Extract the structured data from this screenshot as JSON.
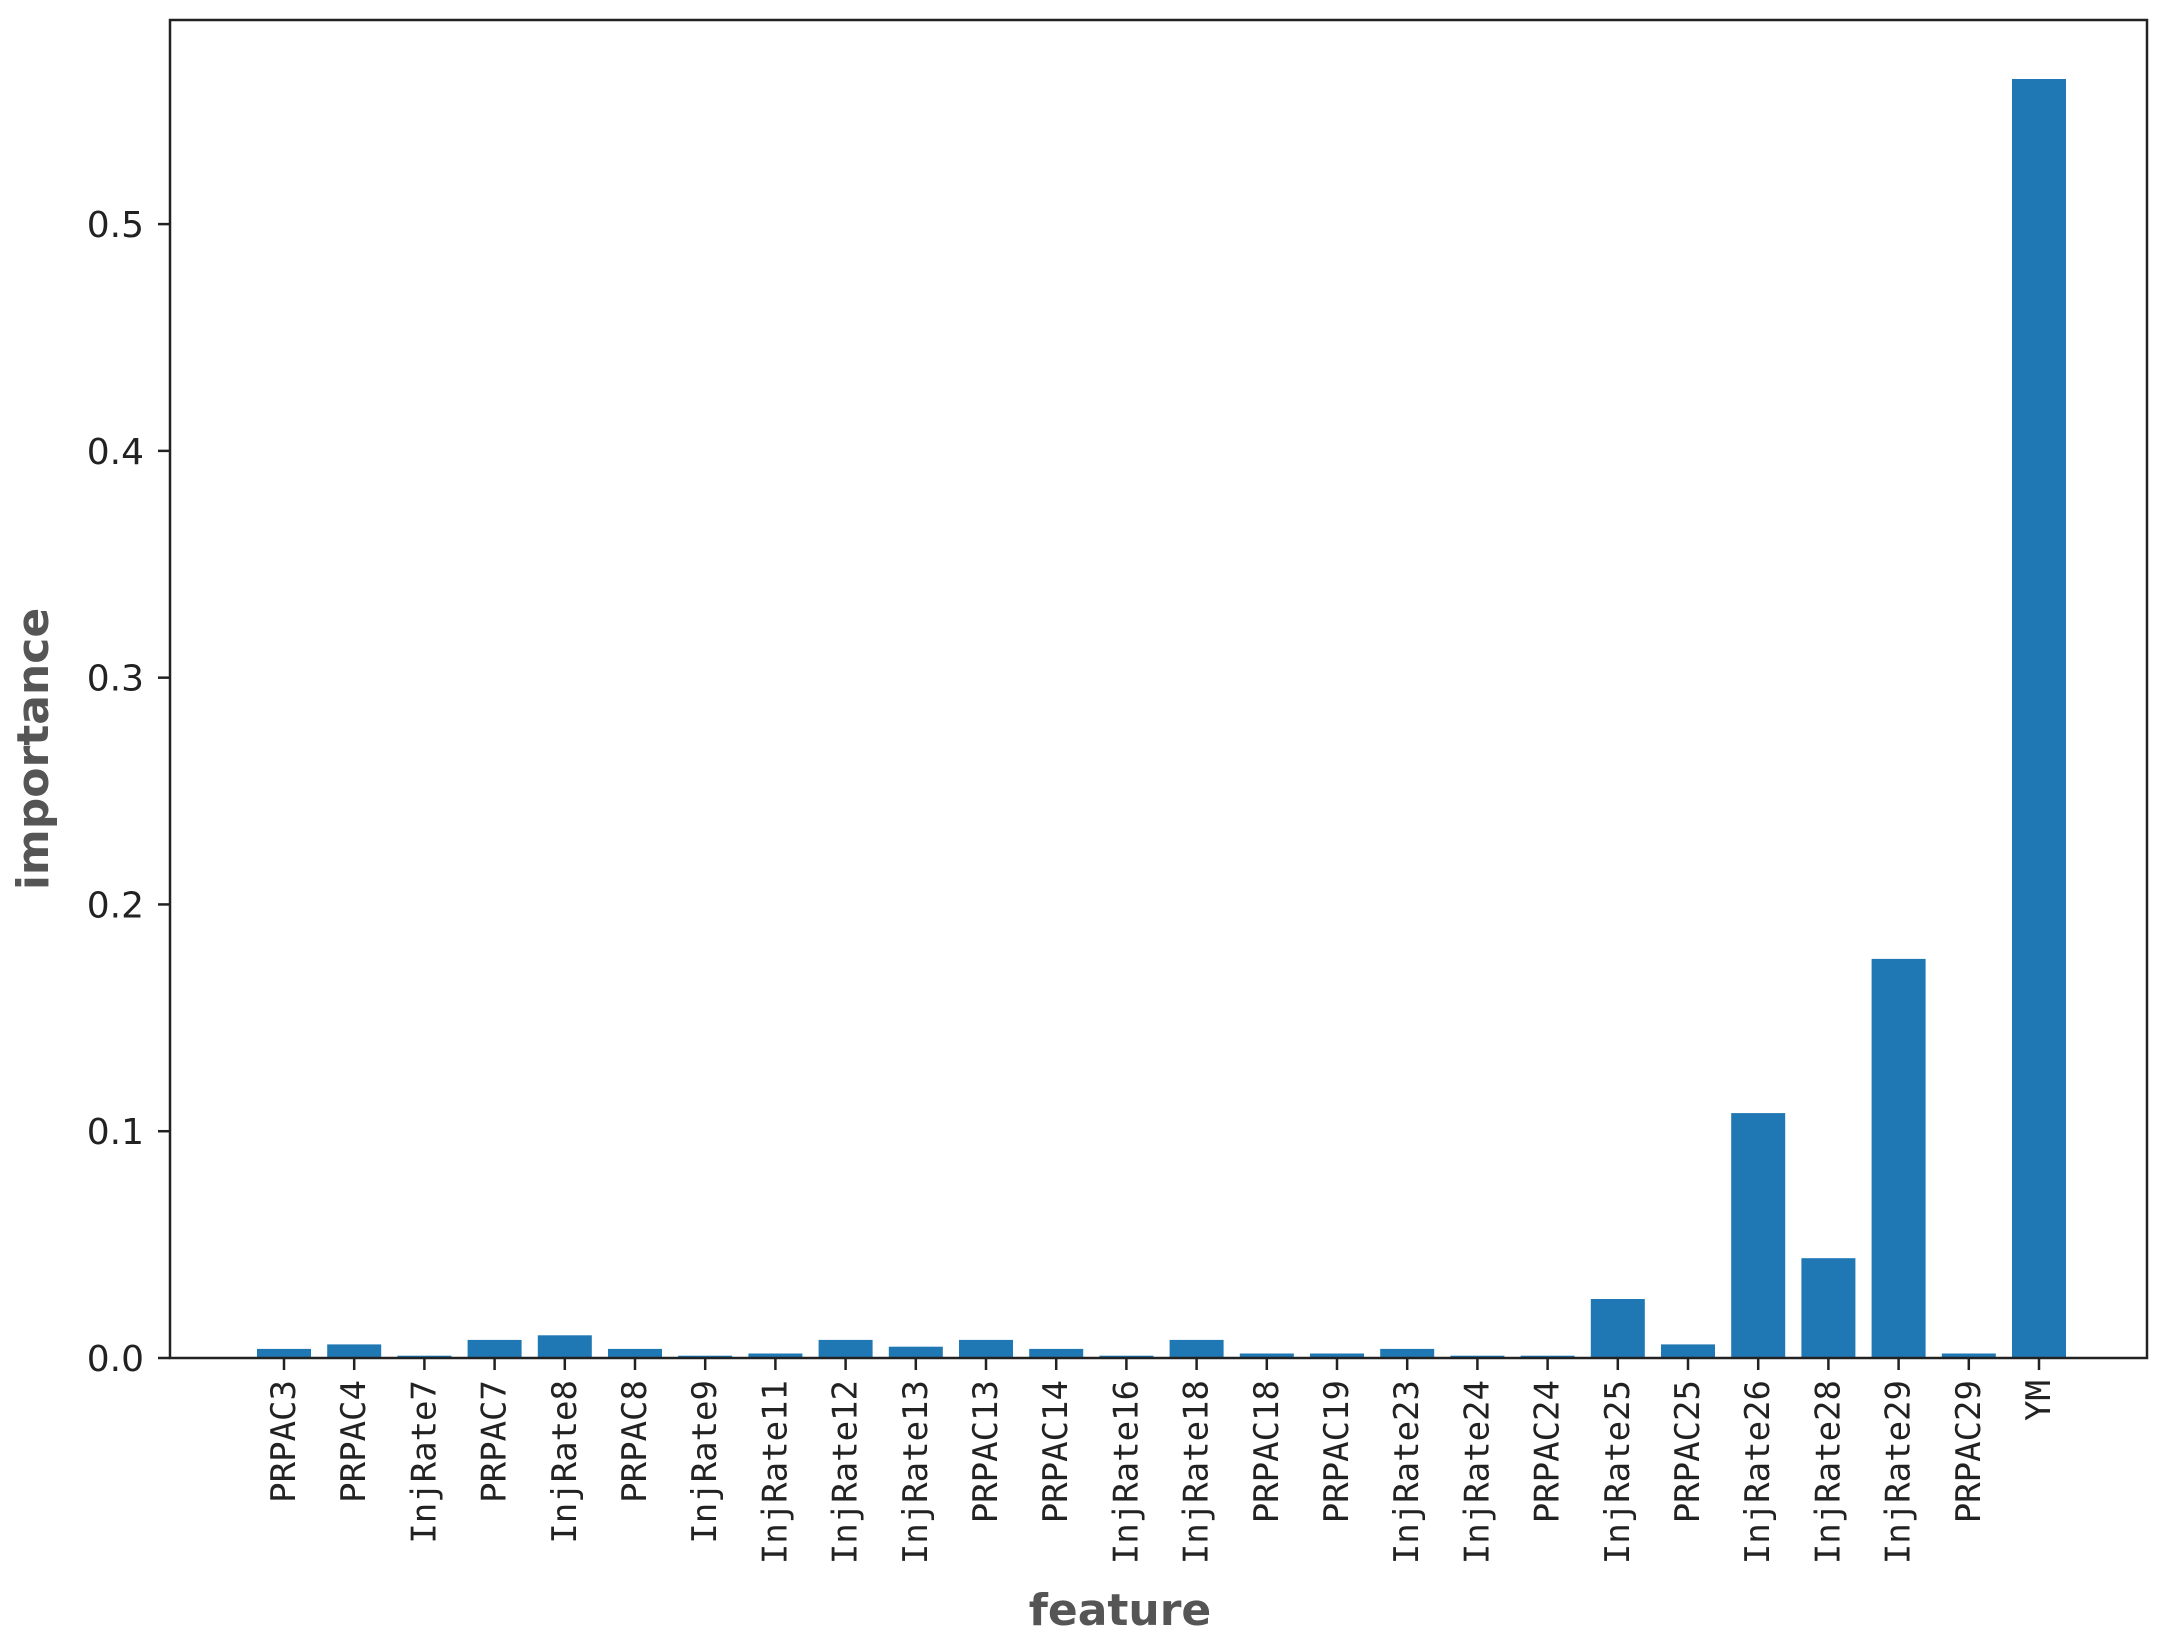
{
  "chart_data": {
    "type": "bar",
    "title": "",
    "xlabel": "feature",
    "ylabel": "importance",
    "ylim": [
      0,
      0.59
    ],
    "yticks": [
      0.0,
      0.1,
      0.2,
      0.3,
      0.4,
      0.5
    ],
    "ytick_labels": [
      "0.0",
      "0.1",
      "0.2",
      "0.3",
      "0.4",
      "0.5"
    ],
    "grid": false,
    "bar_color": "#1f77b4",
    "categories": [
      "PRPAC3",
      "PRPAC4",
      "InjRate7",
      "PRPAC7",
      "InjRate8",
      "PRPAC8",
      "InjRate9",
      "InjRate11",
      "InjRate12",
      "InjRate13",
      "PRPAC13",
      "PRPAC14",
      "InjRate16",
      "InjRate18",
      "PRPAC18",
      "PRPAC19",
      "InjRate23",
      "InjRate24",
      "PRPAC24",
      "InjRate25",
      "PRPAC25",
      "InjRate26",
      "InjRate28",
      "InjRate29",
      "PRPAC29",
      "YM"
    ],
    "values": [
      0.004,
      0.006,
      0.001,
      0.008,
      0.01,
      0.004,
      0.001,
      0.002,
      0.008,
      0.005,
      0.008,
      0.004,
      0.001,
      0.008,
      0.002,
      0.002,
      0.004,
      0.001,
      0.001,
      0.026,
      0.006,
      0.108,
      0.044,
      0.176,
      0.002,
      0.564
    ]
  }
}
